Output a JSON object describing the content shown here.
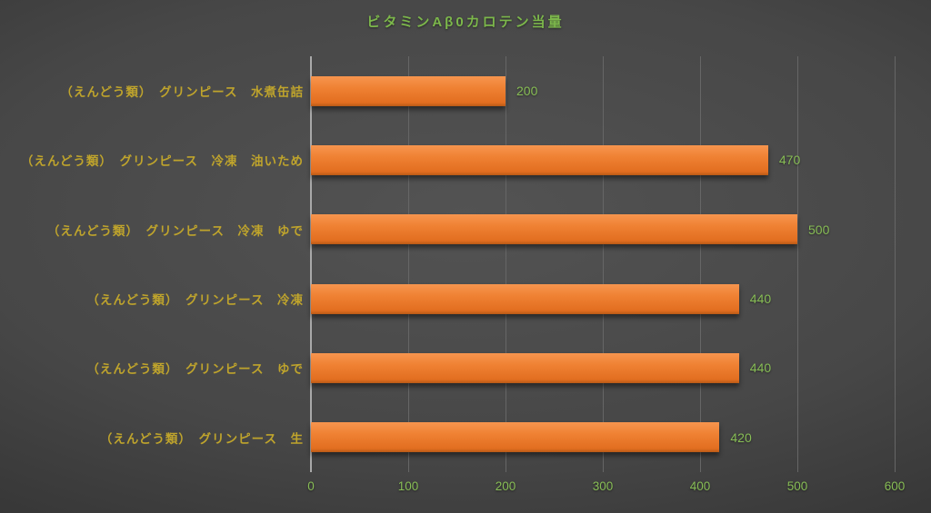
{
  "chart_data": {
    "type": "bar",
    "orientation": "horizontal",
    "title": "ビタミンAβ0カロテン当量",
    "categories": [
      "（えんどう類）　グリンピース　水煮缶詰",
      "（えんどう類）　グリンピース　冷凍　油いため",
      "（えんどう類）　グリンピース　冷凍　ゆで",
      "（えんどう類）　グリンピース　冷凍",
      "（えんどう類）　グリンピース　ゆで",
      "（えんどう類）　グリンピース　生"
    ],
    "values": [
      200,
      470,
      500,
      440,
      440,
      420
    ],
    "xlabel": "",
    "ylabel": "",
    "xlim": [
      0,
      600
    ],
    "xticks": [
      0,
      100,
      200,
      300,
      400,
      500,
      600
    ],
    "grid": "vertical",
    "legend": "none",
    "colors": {
      "bar": "#ed7d31",
      "title_text": "#7cb74b",
      "value_text": "#87bd55",
      "tick_text": "#87bd55",
      "category_text": "#bfa42c",
      "gridline": "#666666",
      "axis_line": "#a9a9a9",
      "background_center": "#515151",
      "background_corner": "#272727"
    }
  }
}
